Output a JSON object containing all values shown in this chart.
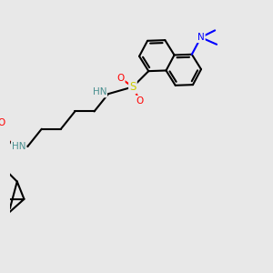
{
  "bg_color": "#e8e8e8",
  "bond_color": "#000000",
  "bond_width": 1.5,
  "atom_colors": {
    "N": "#0000ff",
    "O": "#ff0000",
    "S": "#cccc00",
    "H_label": "#4a9090",
    "C": "#000000"
  },
  "font_size_atom": 7.5,
  "font_size_small": 6.5
}
